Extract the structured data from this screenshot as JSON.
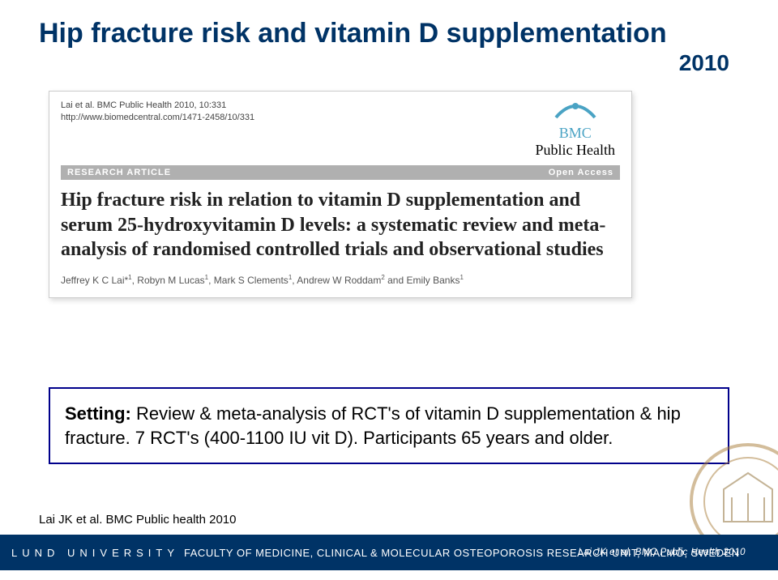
{
  "title": "Hip fracture risk and vitamin D supplementation",
  "year": "2010",
  "citation": {
    "line1": "Lai et al. BMC Public Health 2010, 10:331",
    "line2": "http://www.biomedcentral.com/1471-2458/10/331"
  },
  "logo": {
    "line1": "BMC",
    "line2": "Public Health",
    "arc_color": "#4aa3c4"
  },
  "research_bar": {
    "left": "RESEARCH ARTICLE",
    "right": "Open Access",
    "bg": "#b0b0b0"
  },
  "article_title": "Hip fracture risk in relation to vitamin D supplementation and serum 25-hydroxyvitamin D levels: a systematic review and meta-analysis of randomised controlled trials and observational studies",
  "authors_html": "Jeffrey K C Lai*<span class='sup'>1</span>, Robyn M Lucas<span class='sup'>1</span>, Mark S Clements<span class='sup'>1</span>, Andrew W Roddam<span class='sup'>2</span> and Emily Banks<span class='sup'>1</span>",
  "setting": {
    "label": "Setting:",
    "text": " Review & meta-analysis of RCT's of vitamin D supplementation & hip fracture. 7 RCT's (400-1100 IU vit D). Participants 65 years and older.",
    "border_color": "#00008b"
  },
  "reference": "Lai JK et al. BMC Public health 2010",
  "footer": {
    "uni": "LUND UNIVERSITY",
    "faculty": "FACULTY OF MEDICINE, CLINICAL & MOLECULAR OSTEOPOROSIS RESEARCH UNIT, MALMÖ, SWEDEN",
    "right": "Lai JK et al. BMC Public Health 2010",
    "bg": "#003366"
  },
  "seal_colors": {
    "ring": "#a87d3a",
    "lines": "#8a6a2f"
  }
}
